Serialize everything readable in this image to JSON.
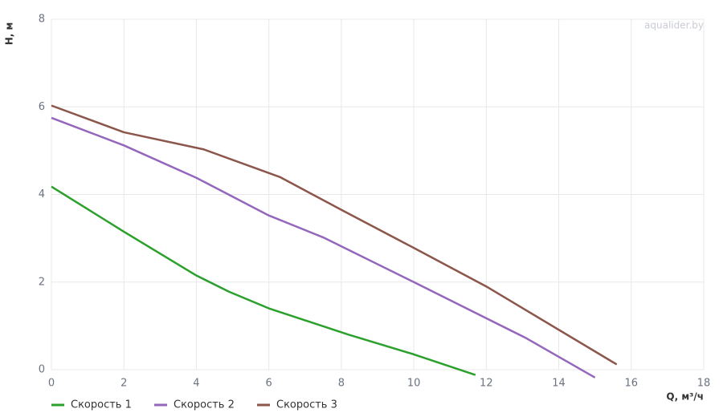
{
  "chart_data": {
    "type": "line",
    "watermark": "aqualider.by",
    "y_label": "H, м",
    "x_label": "Q, м³/ч",
    "xlim": [
      0,
      18
    ],
    "xticks": [
      0,
      2,
      4,
      6,
      8,
      10,
      12,
      14,
      16,
      18
    ],
    "ylim": [
      0,
      8
    ],
    "yticks": [
      0,
      2,
      4,
      6,
      8
    ],
    "grid": true,
    "legend": "bottom-left",
    "series": [
      {
        "name": "Скорость 1",
        "color": "#2ca02c",
        "x": [
          0,
          2,
          4,
          4.9,
          6,
          8.2,
          10,
          11.7
        ],
        "values": [
          4.18,
          3.15,
          2.15,
          1.78,
          1.4,
          0.8,
          0.35,
          -0.12
        ]
      },
      {
        "name": "Скорость 2",
        "color": "#9467bd",
        "x": [
          0,
          2,
          4,
          6,
          7.5,
          10,
          13.1,
          15
        ],
        "values": [
          5.75,
          5.12,
          4.38,
          3.52,
          3.02,
          2.0,
          0.72,
          -0.18
        ]
      },
      {
        "name": "Скорость 3",
        "color": "#8c564b",
        "x": [
          0,
          2,
          4.2,
          6.3,
          8,
          10,
          12,
          15.6
        ],
        "values": [
          6.03,
          5.42,
          5.03,
          4.4,
          3.65,
          2.78,
          1.9,
          0.12
        ]
      }
    ]
  }
}
